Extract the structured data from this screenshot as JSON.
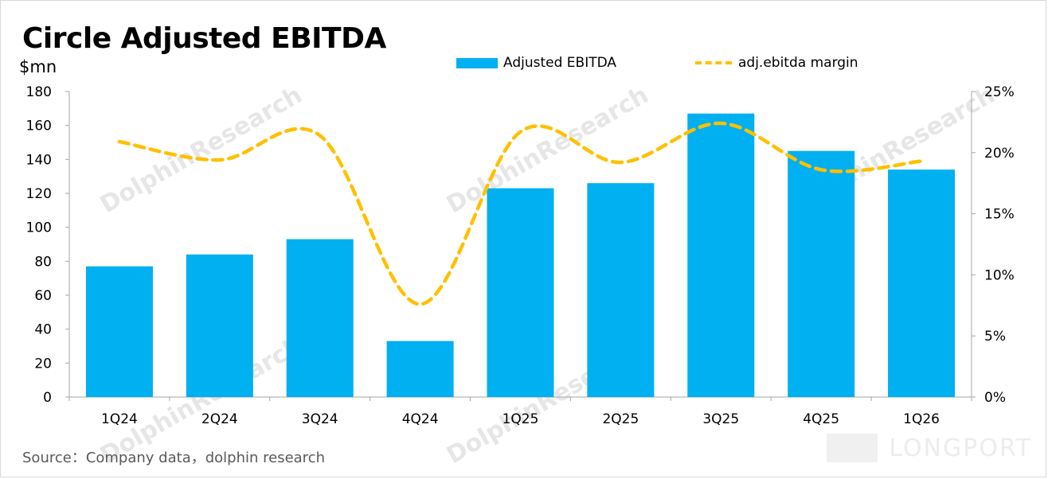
{
  "title": "Circle Adjusted EBITDA",
  "unit_label": "$mn",
  "source": "Source：Company data，dolphin research",
  "watermark": {
    "text": "DolphinResearch",
    "brand": "LONGPORT"
  },
  "legend": {
    "bar_label": "Adjusted EBITDA",
    "line_label": "adj.ebitda margin"
  },
  "colors": {
    "bar": "#00b0f0",
    "line": "#ffc000",
    "axis": "#a6a6a6"
  },
  "chart_data": {
    "type": "bar",
    "categories": [
      "1Q24",
      "2Q24",
      "3Q24",
      "4Q24",
      "1Q25",
      "2Q25",
      "3Q25",
      "4Q25",
      "1Q26"
    ],
    "series": [
      {
        "name": "Adjusted EBITDA",
        "type": "bar",
        "axis": "left",
        "values": [
          77,
          84,
          93,
          33,
          123,
          126,
          167,
          145,
          134
        ]
      },
      {
        "name": "adj.ebitda margin",
        "type": "line",
        "style": "dashed",
        "axis": "right",
        "values": [
          0.209,
          0.194,
          0.214,
          0.076,
          0.217,
          0.192,
          0.224,
          0.186,
          0.193
        ]
      }
    ],
    "ylabel": "$mn",
    "ylim": [
      0,
      180
    ],
    "yticks": [
      "0",
      "20",
      "40",
      "60",
      "80",
      "100",
      "120",
      "140",
      "160",
      "180"
    ],
    "y2lim": [
      0,
      0.25
    ],
    "y2ticks": [
      "0%",
      "5%",
      "10%",
      "15%",
      "20%",
      "25%"
    ],
    "grid": false,
    "legend_position": "top"
  }
}
